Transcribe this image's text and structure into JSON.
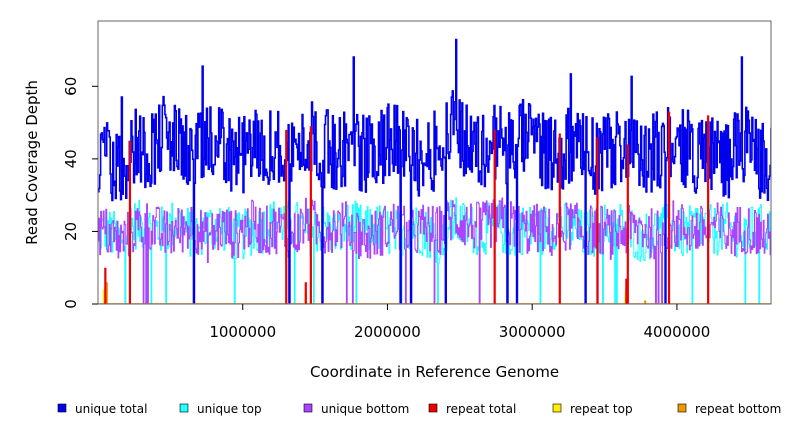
{
  "chart_data": {
    "type": "line",
    "xlabel": "Coordinate in Reference Genome",
    "ylabel": "Read Coverage Depth",
    "xlim": [
      0,
      4650000
    ],
    "ylim": [
      0,
      78
    ],
    "x_ticks": [
      1000000,
      2000000,
      3000000,
      4000000
    ],
    "x_tick_labels": [
      "1000000",
      "2000000",
      "3000000",
      "4000000"
    ],
    "y_ticks": [
      0,
      20,
      40,
      60
    ],
    "y_tick_labels": [
      "0",
      "20",
      "40",
      "60"
    ],
    "grid": false,
    "legend_placement": "bottom",
    "series": [
      {
        "name": "unique total",
        "color": "#0000ee",
        "stroke_width": 1.6,
        "x": [
          50000,
          150000,
          250000,
          350000,
          450000,
          550000,
          650000,
          750000,
          850000,
          950000,
          1050000,
          1150000,
          1250000,
          1350000,
          1450000,
          1550000,
          1650000,
          1750000,
          1850000,
          1950000,
          2050000,
          2150000,
          2250000,
          2350000,
          2450000,
          2550000,
          2650000,
          2750000,
          2850000,
          2950000,
          3050000,
          3150000,
          3250000,
          3350000,
          3450000,
          3550000,
          3650000,
          3750000,
          3850000,
          3950000,
          4050000,
          4150000,
          4250000,
          4350000,
          4450000,
          4550000,
          4630000
        ],
        "values": [
          40,
          36,
          44,
          42,
          47,
          44,
          41,
          43,
          45,
          40,
          42,
          44,
          43,
          41,
          46,
          43,
          42,
          44,
          41,
          43,
          45,
          42,
          40,
          43,
          52,
          44,
          42,
          45,
          43,
          46,
          44,
          41,
          43,
          42,
          40,
          43,
          44,
          38,
          42,
          45,
          43,
          41,
          42,
          40,
          44,
          41,
          38
        ]
      },
      {
        "name": "unique top",
        "color": "#22ffff",
        "stroke_width": 1,
        "x": [
          50000,
          150000,
          250000,
          350000,
          450000,
          550000,
          650000,
          750000,
          850000,
          950000,
          1050000,
          1150000,
          1250000,
          1350000,
          1450000,
          1550000,
          1650000,
          1750000,
          1850000,
          1950000,
          2050000,
          2150000,
          2250000,
          2350000,
          2450000,
          2550000,
          2650000,
          2750000,
          2850000,
          2950000,
          3050000,
          3150000,
          3250000,
          3350000,
          3450000,
          3550000,
          3650000,
          3750000,
          3850000,
          3950000,
          4050000,
          4150000,
          4250000,
          4350000,
          4450000,
          4550000,
          4630000
        ],
        "values": [
          20,
          18,
          22,
          21,
          20,
          23,
          19,
          21,
          22,
          18,
          20,
          21,
          23,
          22,
          20,
          21,
          19,
          22,
          20,
          21,
          19,
          22,
          20,
          18,
          23,
          21,
          20,
          22,
          19,
          21,
          20,
          22,
          21,
          19,
          20,
          22,
          21,
          18,
          20,
          21,
          19,
          22,
          20,
          21,
          19,
          21,
          20
        ]
      },
      {
        "name": "unique bottom",
        "color": "#aa44ff",
        "stroke_width": 1,
        "x": [
          50000,
          150000,
          250000,
          350000,
          450000,
          550000,
          650000,
          750000,
          850000,
          950000,
          1050000,
          1150000,
          1250000,
          1350000,
          1450000,
          1550000,
          1650000,
          1750000,
          1850000,
          1950000,
          2050000,
          2150000,
          2250000,
          2350000,
          2450000,
          2550000,
          2650000,
          2750000,
          2850000,
          2950000,
          3050000,
          3150000,
          3250000,
          3350000,
          3450000,
          3550000,
          3650000,
          3750000,
          3850000,
          3950000,
          4050000,
          4150000,
          4250000,
          4350000,
          4450000,
          4550000,
          4630000
        ],
        "values": [
          20,
          17,
          21,
          22,
          19,
          20,
          22,
          18,
          21,
          19,
          22,
          20,
          21,
          19,
          23,
          20,
          22,
          21,
          18,
          20,
          22,
          19,
          21,
          20,
          24,
          22,
          21,
          23,
          22,
          20,
          21,
          19,
          22,
          20,
          21,
          19,
          20,
          21,
          19,
          22,
          21,
          20,
          22,
          19,
          21,
          20,
          18
        ]
      },
      {
        "name": "repeat total",
        "color": "#ee0000",
        "stroke_width": 1,
        "spikes": [
          [
            50000,
            10
          ],
          [
            220000,
            45
          ],
          [
            1300000,
            48
          ],
          [
            1435000,
            6
          ],
          [
            1470000,
            49
          ],
          [
            2740000,
            48
          ],
          [
            3190000,
            47
          ],
          [
            3450000,
            46
          ],
          [
            3650000,
            7
          ],
          [
            3660000,
            44
          ],
          [
            3945000,
            53
          ],
          [
            4215000,
            52
          ]
        ]
      },
      {
        "name": "repeat top",
        "color": "#ffee00",
        "stroke_width": 1,
        "spikes": [
          [
            40000,
            4
          ],
          [
            1435000,
            3
          ],
          [
            3645000,
            3
          ]
        ]
      },
      {
        "name": "repeat bottom",
        "color": "#ee9900",
        "stroke_width": 1,
        "spikes": [
          [
            60000,
            6
          ],
          [
            1435000,
            3
          ],
          [
            3650000,
            4
          ],
          [
            3780000,
            1
          ]
        ]
      }
    ]
  }
}
